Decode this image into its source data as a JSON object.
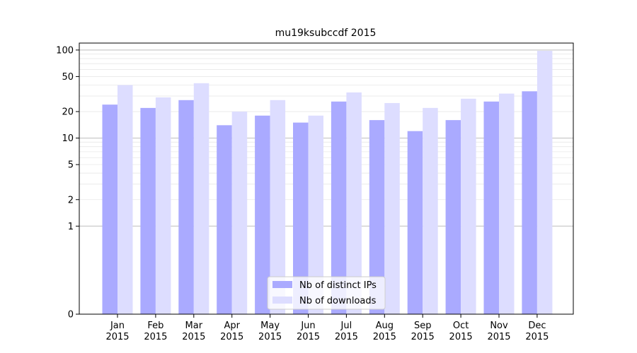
{
  "chart_data": {
    "type": "bar",
    "title": "mu19ksubccdf 2015",
    "xlabel": "",
    "ylabel": "",
    "yscale": "symlog",
    "ylim": [
      0,
      120
    ],
    "yticks": [
      0,
      1,
      2,
      5,
      10,
      20,
      50,
      100
    ],
    "grid": true,
    "legend_position": "lower-center",
    "categories": [
      [
        "Jan",
        "2015"
      ],
      [
        "Feb",
        "2015"
      ],
      [
        "Mar",
        "2015"
      ],
      [
        "Apr",
        "2015"
      ],
      [
        "May",
        "2015"
      ],
      [
        "Jun",
        "2015"
      ],
      [
        "Jul",
        "2015"
      ],
      [
        "Aug",
        "2015"
      ],
      [
        "Sep",
        "2015"
      ],
      [
        "Oct",
        "2015"
      ],
      [
        "Nov",
        "2015"
      ],
      [
        "Dec",
        "2015"
      ]
    ],
    "series": [
      {
        "name": "Nb of distinct IPs",
        "color": "#aaaaff",
        "values": [
          24,
          22,
          27,
          14,
          18,
          15,
          26,
          16,
          12,
          16,
          26,
          34
        ]
      },
      {
        "name": "Nb of downloads",
        "color": "#ddddff",
        "values": [
          40,
          29,
          42,
          20,
          27,
          18,
          33,
          25,
          22,
          28,
          32,
          98
        ]
      }
    ]
  }
}
